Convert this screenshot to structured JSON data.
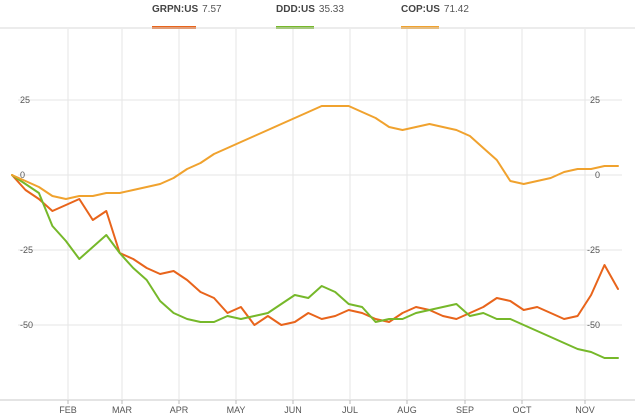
{
  "legend": [
    {
      "symbol": "GRPN:US",
      "value": "7.57",
      "color": "#e8641b"
    },
    {
      "symbol": "DDD:US",
      "value": "35.33",
      "color": "#76b82a"
    },
    {
      "symbol": "COP:US",
      "value": "71.42",
      "color": "#f0a22e"
    }
  ],
  "chart_data": {
    "type": "line",
    "x_labels": [
      "FEB",
      "MAR",
      "APR",
      "MAY",
      "JUN",
      "JUL",
      "AUG",
      "SEP",
      "OCT",
      "NOV"
    ],
    "yticks": [
      25,
      0,
      -25,
      -50
    ],
    "ytick_labels": [
      "25",
      "0",
      "-25",
      "-50"
    ],
    "ylim": [
      -75,
      50
    ],
    "grid": true,
    "series": [
      {
        "name": "GRPN:US",
        "color": "#e8641b",
        "values": [
          0,
          -5,
          -8,
          -12,
          -10,
          -8,
          -15,
          -12,
          -26,
          -28,
          -31,
          -33,
          -32,
          -35,
          -39,
          -41,
          -46,
          -44,
          -50,
          -47,
          -50,
          -49,
          -46,
          -48,
          -47,
          -45,
          -46,
          -48,
          -49,
          -46,
          -44,
          -45,
          -47,
          -48,
          -46,
          -44,
          -41,
          -42,
          -45,
          -44,
          -46,
          -48,
          -47,
          -40,
          -30,
          -38
        ]
      },
      {
        "name": "DDD:US",
        "color": "#76b82a",
        "values": [
          0,
          -3,
          -6,
          -17,
          -22,
          -28,
          -24,
          -20,
          -26,
          -31,
          -35,
          -42,
          -46,
          -48,
          -49,
          -49,
          -47,
          -48,
          -47,
          -46,
          -43,
          -40,
          -41,
          -37,
          -39,
          -43,
          -44,
          -49,
          -48,
          -48,
          -46,
          -45,
          -44,
          -43,
          -47,
          -46,
          -48,
          -48,
          -50,
          -52,
          -54,
          -56,
          -58,
          -59,
          -61,
          -61
        ]
      },
      {
        "name": "COP:US",
        "color": "#f0a22e",
        "values": [
          0,
          -2,
          -4,
          -7,
          -8,
          -7,
          -7,
          -6,
          -6,
          -5,
          -4,
          -3,
          -1,
          2,
          4,
          7,
          9,
          11,
          13,
          15,
          17,
          19,
          21,
          23,
          23,
          23,
          21,
          19,
          16,
          15,
          16,
          17,
          16,
          15,
          13,
          9,
          5,
          -2,
          -3,
          -2,
          -1,
          1,
          2,
          2,
          3,
          3
        ]
      }
    ]
  }
}
